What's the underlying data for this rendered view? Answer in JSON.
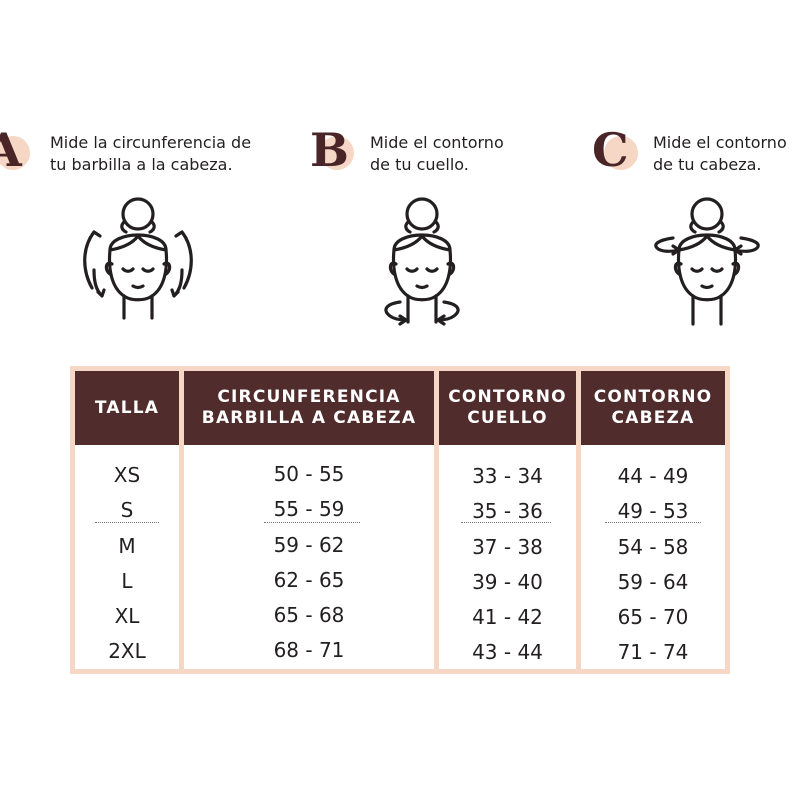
{
  "steps": [
    {
      "letter": "A",
      "line1": "Mide la circunferencia de",
      "line2": "tu barbilla a la cabeza."
    },
    {
      "letter": "B",
      "line1": "Mide el contorno",
      "line2": "de tu cuello."
    },
    {
      "letter": "C",
      "line1": "Mide el contorno",
      "line2": "de tu cabeza."
    }
  ],
  "icons": [
    "face-chin-to-head-icon",
    "face-neck-icon",
    "face-head-icon"
  ],
  "colors": {
    "header_bg": "#512c2d",
    "frame": "#f6d6c4",
    "letter": "#4a2528"
  },
  "table": {
    "headers": [
      {
        "l1": "TALLA",
        "l2": ""
      },
      {
        "l1": "CIRCUNFERENCIA",
        "l2": "BARBILLA A CABEZA"
      },
      {
        "l1": "CONTORNO",
        "l2": "CUELLO"
      },
      {
        "l1": "CONTORNO",
        "l2": "CABEZA"
      }
    ],
    "rows": [
      [
        "XS",
        "50 - 55",
        "33 - 34",
        "44 - 49"
      ],
      [
        "S",
        "55 - 59",
        "35 - 36",
        "49 - 53"
      ],
      [
        "M",
        "59 - 62",
        "37 - 38",
        "54 - 58"
      ],
      [
        "L",
        "62 - 65",
        "39 - 40",
        "59 - 64"
      ],
      [
        "XL",
        "65 - 68",
        "41 - 42",
        "65 - 70"
      ],
      [
        "2XL",
        "68 - 71",
        "43 - 44",
        "71 - 74"
      ]
    ]
  }
}
